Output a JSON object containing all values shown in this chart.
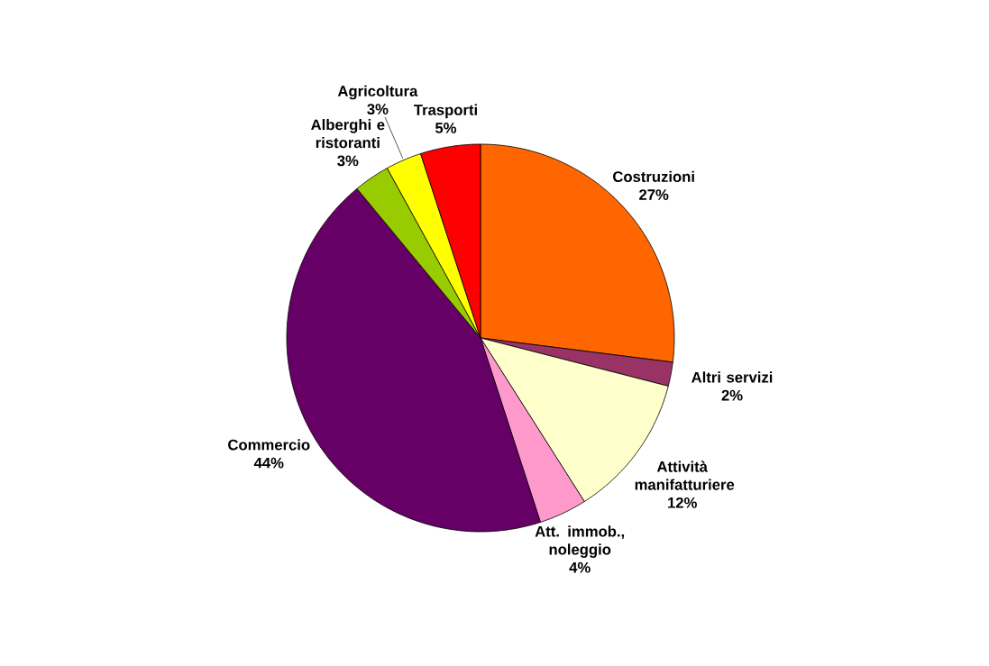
{
  "chart_data": {
    "type": "pie",
    "categories": [
      "Costruzioni",
      "Altri servizi",
      "Attività manifatturiere",
      "Att. immob., noleggio",
      "Commercio",
      "Alberghi e ristoranti",
      "Agricoltura",
      "Trasporti"
    ],
    "values": [
      27,
      2,
      12,
      4,
      44,
      3,
      3,
      5
    ],
    "value_labels": [
      "27%",
      "2%",
      "12%",
      "4%",
      "44%",
      "3%",
      "3%",
      "5%"
    ],
    "colors": [
      "#ff6600",
      "#993366",
      "#ffffcc",
      "#ff99cc",
      "#660066",
      "#99cc00",
      "#ffff00",
      "#ff0000"
    ]
  }
}
